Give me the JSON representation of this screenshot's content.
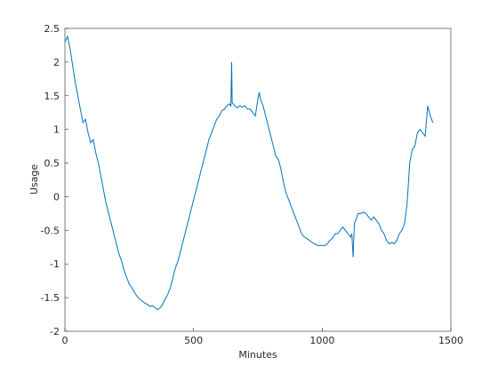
{
  "chart_data": {
    "type": "line",
    "xlabel": "Minutes",
    "ylabel": "Usage",
    "xlim": [
      0,
      1500
    ],
    "ylim": [
      -2,
      2.5
    ],
    "xticks": [
      0,
      500,
      1000,
      1500
    ],
    "yticks": [
      -2,
      -1.5,
      -1,
      -0.5,
      0,
      0.5,
      1,
      1.5,
      2,
      2.5
    ],
    "x": [
      0,
      10,
      20,
      30,
      40,
      50,
      60,
      70,
      80,
      90,
      100,
      110,
      120,
      130,
      140,
      150,
      160,
      170,
      180,
      190,
      200,
      210,
      220,
      230,
      240,
      250,
      260,
      270,
      280,
      290,
      300,
      310,
      320,
      330,
      340,
      350,
      360,
      370,
      380,
      390,
      400,
      410,
      420,
      430,
      440,
      450,
      460,
      470,
      480,
      490,
      500,
      510,
      520,
      530,
      540,
      550,
      560,
      570,
      580,
      590,
      600,
      610,
      620,
      630,
      640,
      645,
      648,
      650,
      660,
      670,
      680,
      690,
      700,
      710,
      720,
      730,
      740,
      750,
      755,
      760,
      770,
      780,
      790,
      800,
      810,
      820,
      830,
      840,
      850,
      860,
      870,
      880,
      890,
      900,
      910,
      920,
      930,
      940,
      950,
      960,
      970,
      980,
      990,
      1000,
      1010,
      1020,
      1030,
      1040,
      1050,
      1060,
      1070,
      1080,
      1090,
      1100,
      1110,
      1115,
      1120,
      1125,
      1130,
      1140,
      1150,
      1160,
      1170,
      1180,
      1190,
      1200,
      1210,
      1220,
      1230,
      1240,
      1250,
      1260,
      1270,
      1280,
      1290,
      1300,
      1310,
      1320,
      1330,
      1340,
      1350,
      1360,
      1370,
      1380,
      1390,
      1400,
      1410,
      1420,
      1430
    ],
    "series": [
      {
        "color": "#0072bd",
        "values": [
          2.3,
          2.38,
          2.2,
          1.95,
          1.7,
          1.5,
          1.3,
          1.1,
          1.15,
          0.95,
          0.8,
          0.85,
          0.65,
          0.5,
          0.3,
          0.1,
          -0.1,
          -0.25,
          -0.4,
          -0.55,
          -0.7,
          -0.85,
          -0.95,
          -1.1,
          -1.2,
          -1.3,
          -1.35,
          -1.42,
          -1.48,
          -1.52,
          -1.55,
          -1.58,
          -1.6,
          -1.63,
          -1.62,
          -1.65,
          -1.68,
          -1.65,
          -1.6,
          -1.52,
          -1.45,
          -1.35,
          -1.2,
          -1.05,
          -0.95,
          -0.8,
          -0.65,
          -0.5,
          -0.35,
          -0.2,
          -0.05,
          0.1,
          0.25,
          0.4,
          0.55,
          0.7,
          0.85,
          0.95,
          1.05,
          1.15,
          1.2,
          1.28,
          1.3,
          1.35,
          1.38,
          1.35,
          2.0,
          1.4,
          1.35,
          1.32,
          1.35,
          1.33,
          1.35,
          1.3,
          1.3,
          1.25,
          1.2,
          1.45,
          1.55,
          1.45,
          1.35,
          1.2,
          1.05,
          0.9,
          0.75,
          0.6,
          0.55,
          0.4,
          0.2,
          0.05,
          -0.05,
          -0.15,
          -0.25,
          -0.35,
          -0.45,
          -0.55,
          -0.6,
          -0.62,
          -0.65,
          -0.68,
          -0.7,
          -0.72,
          -0.73,
          -0.72,
          -0.73,
          -0.7,
          -0.65,
          -0.62,
          -0.55,
          -0.55,
          -0.5,
          -0.45,
          -0.5,
          -0.55,
          -0.6,
          -0.55,
          -0.9,
          -0.4,
          -0.35,
          -0.25,
          -0.25,
          -0.23,
          -0.25,
          -0.3,
          -0.35,
          -0.3,
          -0.35,
          -0.4,
          -0.5,
          -0.55,
          -0.65,
          -0.7,
          -0.68,
          -0.7,
          -0.65,
          -0.55,
          -0.5,
          -0.4,
          -0.1,
          0.5,
          0.7,
          0.75,
          0.95,
          1.0,
          0.95,
          0.9,
          1.35,
          1.2,
          1.1
        ]
      }
    ]
  }
}
